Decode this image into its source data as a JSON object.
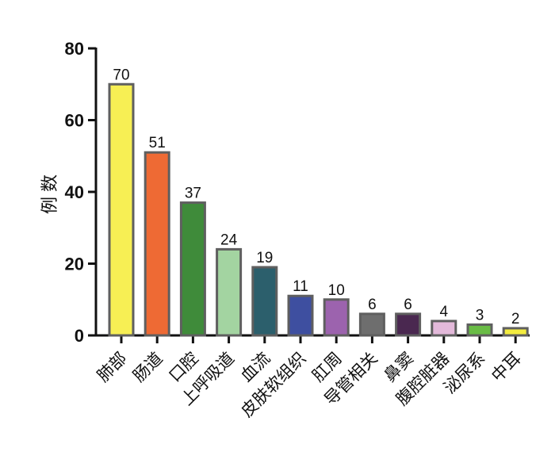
{
  "chart_data": {
    "type": "bar",
    "title": "",
    "xlabel": "",
    "ylabel": "例数",
    "ylim": [
      0,
      80
    ],
    "yticks": [
      0,
      20,
      40,
      60,
      80
    ],
    "grid": false,
    "categories": [
      "肺部",
      "肠道",
      "口腔",
      "上呼吸道",
      "血流",
      "皮肤软组织",
      "肛周",
      "导管相关",
      "鼻窦",
      "腹腔脏器",
      "泌尿系",
      "中耳"
    ],
    "values": [
      70,
      51,
      37,
      24,
      19,
      11,
      10,
      6,
      6,
      4,
      3,
      2
    ],
    "colors": [
      "#F7EF54",
      "#EE6A34",
      "#3F8B3A",
      "#A3D4A1",
      "#2C5F6C",
      "#3E4FA0",
      "#9C63AE",
      "#6E6E6E",
      "#4A2850",
      "#E3B9DA",
      "#69BC45",
      "#F3EC3F"
    ],
    "bar_border_color": "#5F5F5F"
  }
}
